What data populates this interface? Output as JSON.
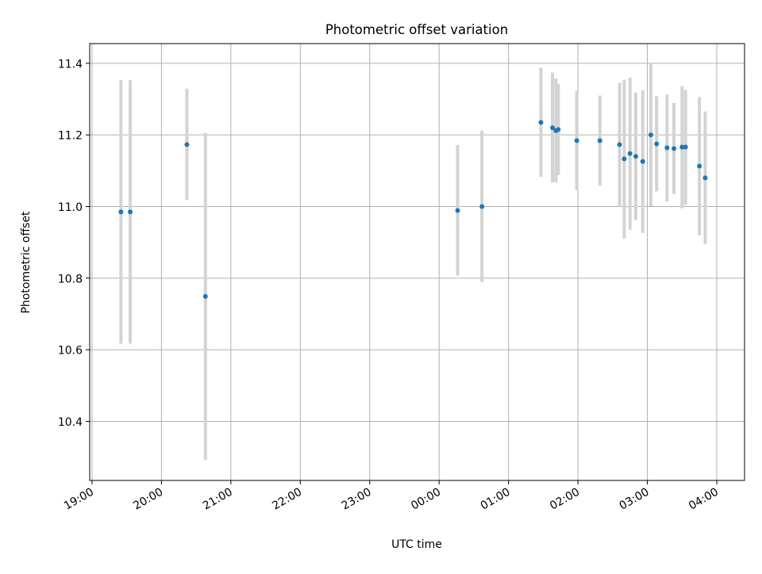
{
  "chart_data": {
    "type": "scatter",
    "title": "Photometric offset variation",
    "xlabel": "UTC time",
    "ylabel": "Photometric offset",
    "x_axis_type": "time",
    "xlim": [
      "18:58",
      "04:24"
    ],
    "ylim": [
      10.235,
      11.455
    ],
    "x_ticks": [
      "19:00",
      "20:00",
      "21:00",
      "22:00",
      "23:00",
      "00:00",
      "01:00",
      "02:00",
      "03:00",
      "04:00"
    ],
    "y_ticks": [
      10.4,
      10.6,
      10.8,
      11.0,
      11.2,
      11.4
    ],
    "grid": true,
    "point_color": "#1f77b4",
    "errorbar_color": "#d3d3d3",
    "points": [
      {
        "t": "19:25",
        "y": 10.985,
        "lo": 10.617,
        "hi": 11.353
      },
      {
        "t": "19:33",
        "y": 10.985,
        "lo": 10.617,
        "hi": 11.353
      },
      {
        "t": "20:22",
        "y": 11.173,
        "lo": 11.018,
        "hi": 11.329
      },
      {
        "t": "20:38",
        "y": 10.749,
        "lo": 10.292,
        "hi": 11.206
      },
      {
        "t": "00:16",
        "y": 10.989,
        "lo": 10.807,
        "hi": 11.172
      },
      {
        "t": "00:37",
        "y": 11.0,
        "lo": 10.789,
        "hi": 11.212
      },
      {
        "t": "01:28",
        "y": 11.235,
        "lo": 11.083,
        "hi": 11.388
      },
      {
        "t": "01:38",
        "y": 11.22,
        "lo": 11.067,
        "hi": 11.374
      },
      {
        "t": "01:41",
        "y": 11.212,
        "lo": 11.067,
        "hi": 11.358
      },
      {
        "t": "01:43",
        "y": 11.215,
        "lo": 11.088,
        "hi": 11.343
      },
      {
        "t": "01:59",
        "y": 11.184,
        "lo": 11.045,
        "hi": 11.323
      },
      {
        "t": "02:19",
        "y": 11.184,
        "lo": 11.058,
        "hi": 11.31
      },
      {
        "t": "02:36",
        "y": 11.173,
        "lo": 11.0,
        "hi": 11.346
      },
      {
        "t": "02:40",
        "y": 11.133,
        "lo": 10.911,
        "hi": 11.354
      },
      {
        "t": "02:45",
        "y": 11.148,
        "lo": 10.935,
        "hi": 11.36
      },
      {
        "t": "02:50",
        "y": 11.14,
        "lo": 10.962,
        "hi": 11.318
      },
      {
        "t": "02:56",
        "y": 11.126,
        "lo": 10.926,
        "hi": 11.325
      },
      {
        "t": "03:03",
        "y": 11.2,
        "lo": 11.001,
        "hi": 11.398
      },
      {
        "t": "03:08",
        "y": 11.175,
        "lo": 11.042,
        "hi": 11.308
      },
      {
        "t": "03:17",
        "y": 11.164,
        "lo": 11.014,
        "hi": 11.313
      },
      {
        "t": "03:23",
        "y": 11.162,
        "lo": 11.035,
        "hi": 11.289
      },
      {
        "t": "03:30",
        "y": 11.166,
        "lo": 10.995,
        "hi": 11.336
      },
      {
        "t": "03:33",
        "y": 11.166,
        "lo": 11.005,
        "hi": 11.326
      },
      {
        "t": "03:45",
        "y": 11.113,
        "lo": 10.919,
        "hi": 11.306
      },
      {
        "t": "03:50",
        "y": 11.08,
        "lo": 10.895,
        "hi": 11.265
      }
    ]
  }
}
